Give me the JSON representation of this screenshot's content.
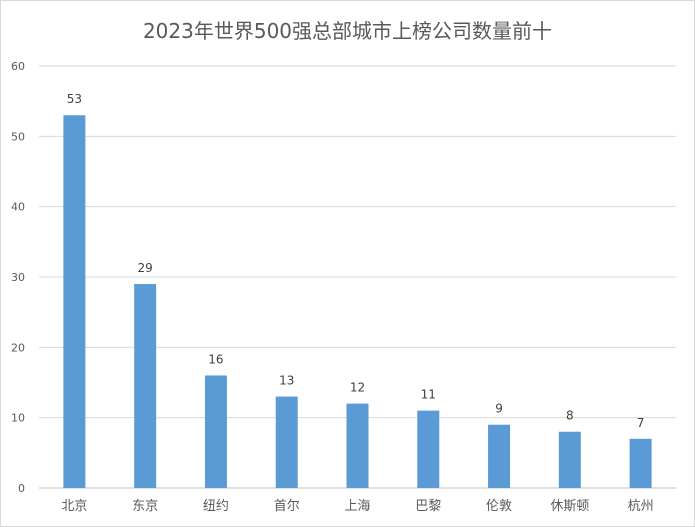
{
  "chart_data": {
    "type": "bar",
    "title": "2023年世界500强总部城市上榜公司数量前十",
    "categories": [
      "北京",
      "东京",
      "纽约",
      "首尔",
      "上海",
      "巴黎",
      "伦敦",
      "休斯顿",
      "杭州"
    ],
    "values": [
      53,
      29,
      16,
      13,
      12,
      11,
      9,
      8,
      7
    ],
    "ylim": [
      0,
      60
    ],
    "yticks": [
      0,
      10,
      20,
      30,
      40,
      50,
      60
    ],
    "grid": true,
    "bar_color": "#5b9bd5",
    "data_labels": true
  }
}
